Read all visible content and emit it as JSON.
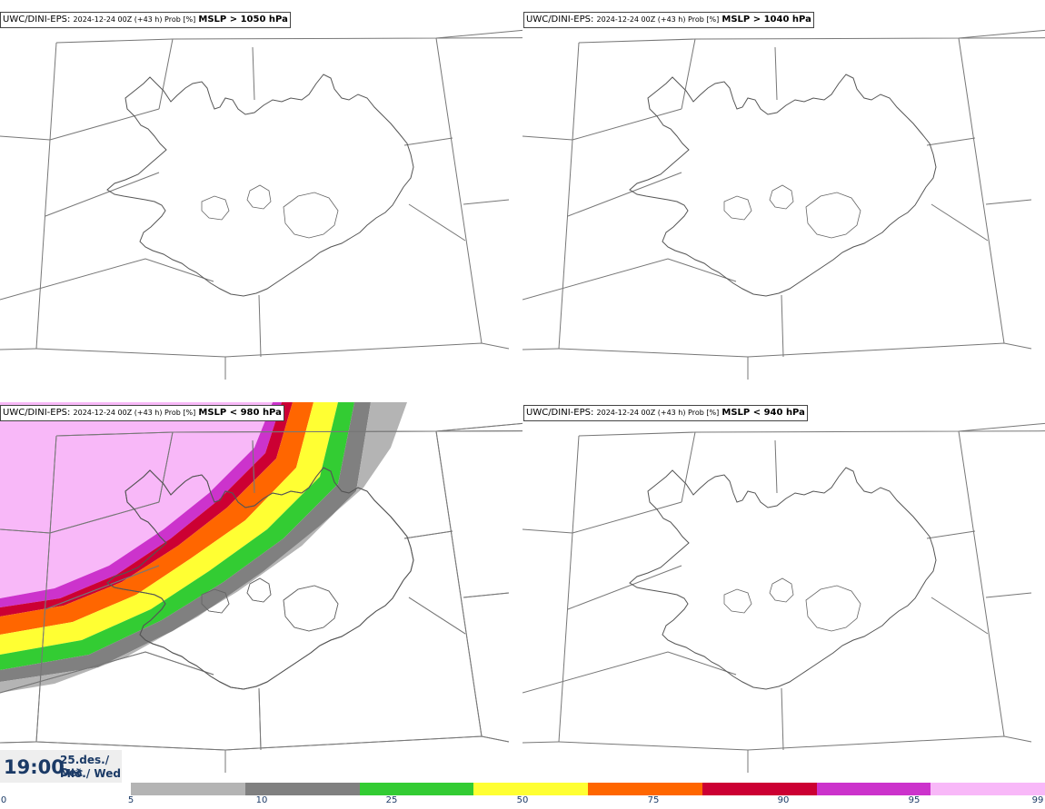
{
  "panels": [
    {
      "model": "UWC/DINI-EPS",
      "run": "2024-12-24 00Z (+43 h) Prob [%]",
      "variable": "MSLP > 1050 hPa"
    },
    {
      "model": "UWC/DINI-EPS",
      "run": "2024-12-24 00Z (+43 h) Prob [%]",
      "variable": "MSLP > 1040 hPa"
    },
    {
      "model": "UWC/DINI-EPS",
      "run": "2024-12-24 00Z (+43 h) Prob [%]",
      "variable": "MSLP < 980 hPa"
    },
    {
      "model": "UWC/DINI-EPS",
      "run": "2024-12-24 00Z (+43 h) Prob [%]",
      "variable": "MSLP < 940 hPa"
    }
  ],
  "valid_time": {
    "time": "19:00",
    "date_line1": "25.des./ Dec",
    "date_line2": "Mið./ Wed"
  },
  "legend": {
    "ticks": [
      "0",
      "5",
      "10",
      "25",
      "50",
      "75",
      "90",
      "95",
      "99"
    ],
    "colors": [
      "#b4b4b4",
      "#808080",
      "#33cc33",
      "#ffff33",
      "#ff6600",
      "#cc0033",
      "#cc33cc",
      "#f8b8f8"
    ]
  }
}
